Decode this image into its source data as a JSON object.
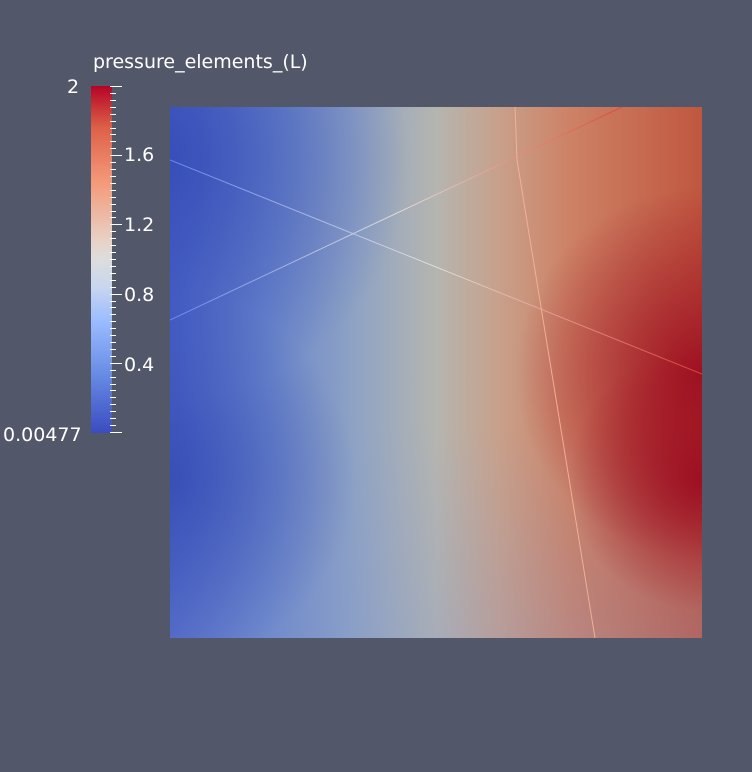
{
  "scalar_bar": {
    "title": "pressure_elements_(L)",
    "max_label": "2",
    "min_label": "0.00477",
    "tick_labels": [
      "1.6",
      "1.2",
      "0.8",
      "0.4"
    ],
    "range": [
      0.00477,
      2
    ],
    "colormap": "cool-to-warm",
    "colors": {
      "high": "#b40426",
      "mid": "#dddddd",
      "low": "#3b4cc0"
    }
  },
  "scene": {
    "background": "#525769",
    "field": "pressure_elements_(L)"
  }
}
